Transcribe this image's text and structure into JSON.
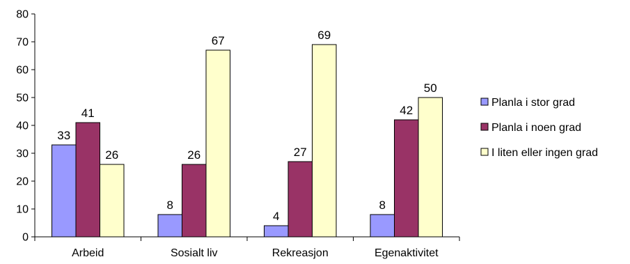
{
  "chart_data": {
    "type": "bar",
    "categories": [
      "Arbeid",
      "Sosialt liv",
      "Rekreasjon",
      "Egenaktivitet"
    ],
    "series": [
      {
        "name": "Planla i stor grad",
        "values": [
          33,
          8,
          4,
          8
        ],
        "color": "#9999ff"
      },
      {
        "name": "Planla i noen grad",
        "values": [
          41,
          26,
          27,
          42
        ],
        "color": "#993366"
      },
      {
        "name": "I liten eller ingen grad",
        "values": [
          26,
          67,
          69,
          50
        ],
        "color": "#ffffcc"
      }
    ],
    "ylim": [
      0,
      80
    ],
    "yticks": [
      0,
      10,
      20,
      30,
      40,
      50,
      60,
      70,
      80
    ],
    "grid": false,
    "legend_position": "right",
    "data_labels": true
  }
}
